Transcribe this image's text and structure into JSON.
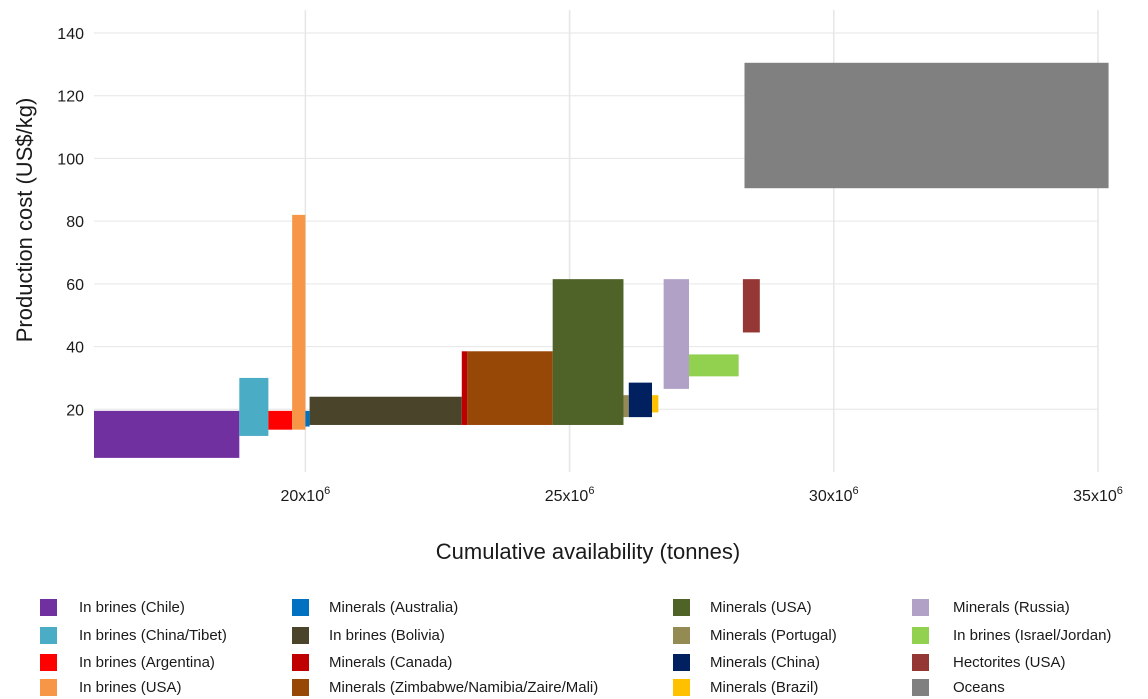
{
  "chart_data": {
    "type": "bar",
    "subtype": "supply-cost-curve",
    "title": "",
    "xlabel": "Cumulative availability (tonnes)",
    "ylabel": "Production cost (US$/kg)",
    "xlim": [
      16000000,
      35000000
    ],
    "ylim": [
      0,
      140
    ],
    "grid": true,
    "x_ticks": [
      {
        "value": 20000000,
        "label": "20x10",
        "sup": "6"
      },
      {
        "value": 25000000,
        "label": "25x10",
        "sup": "6"
      },
      {
        "value": 30000000,
        "label": "30x10",
        "sup": "6"
      },
      {
        "value": 35000000,
        "label": "35x10",
        "sup": "6"
      }
    ],
    "y_ticks": [
      20,
      40,
      60,
      80,
      100,
      120,
      140
    ],
    "series": [
      {
        "name": "In brines (Chile)",
        "color": "#7030a0",
        "x0": 16000000,
        "x1": 18750000,
        "ymin": 4.5,
        "ymax": 19.5
      },
      {
        "name": "In brines (China/Tibet)",
        "color": "#4bacc6",
        "x0": 18750000,
        "x1": 19300000,
        "ymin": 11.5,
        "ymax": 30
      },
      {
        "name": "In brines (Argentina)",
        "color": "#ff0000",
        "x0": 19300000,
        "x1": 19750000,
        "ymin": 13.5,
        "ymax": 19.5
      },
      {
        "name": "In brines (USA)",
        "color": "#f79646",
        "x0": 19750000,
        "x1": 20000000,
        "ymin": 13.5,
        "ymax": 82
      },
      {
        "name": "Minerals (Australia)",
        "color": "#0070c0",
        "x0": 20000000,
        "x1": 20080000,
        "ymin": 14.5,
        "ymax": 19.5
      },
      {
        "name": "In brines (Bolivia)",
        "color": "#4a452a",
        "x0": 20080000,
        "x1": 22960000,
        "ymin": 15,
        "ymax": 24
      },
      {
        "name": "Minerals (Canada)",
        "color": "#c00000",
        "x0": 22960000,
        "x1": 23060000,
        "ymin": 15,
        "ymax": 38.5
      },
      {
        "name": "Minerals (Zimbabwe/Namibia/Zaire/Mali)",
        "color": "#974706",
        "x0": 23060000,
        "x1": 24680000,
        "ymin": 15,
        "ymax": 38.5
      },
      {
        "name": "Minerals (USA)",
        "color": "#4f6228",
        "x0": 24680000,
        "x1": 26020000,
        "ymin": 15,
        "ymax": 61.5
      },
      {
        "name": "Minerals (Portugal)",
        "color": "#948a54",
        "x0": 26020000,
        "x1": 26120000,
        "ymin": 17.5,
        "ymax": 24.5
      },
      {
        "name": "Minerals (China)",
        "color": "#002060",
        "x0": 26120000,
        "x1": 26560000,
        "ymin": 17.5,
        "ymax": 28.5
      },
      {
        "name": "Minerals (Brazil)",
        "color": "#ffc000",
        "x0": 26560000,
        "x1": 26680000,
        "ymin": 19,
        "ymax": 24.5
      },
      {
        "name": "Minerals (Russia)",
        "color": "#b2a1c7",
        "x0": 26780000,
        "x1": 27260000,
        "ymin": 26.5,
        "ymax": 61.5
      },
      {
        "name": "In brines (Israel/Jordan)",
        "color": "#92d050",
        "x0": 27260000,
        "x1": 28200000,
        "ymin": 30.5,
        "ymax": 37.5
      },
      {
        "name": "Hectorites (USA)",
        "color": "#953735",
        "x0": 28280000,
        "x1": 28600000,
        "ymin": 44.5,
        "ymax": 61.5
      },
      {
        "name": "Oceans",
        "color": "#808080",
        "x0": 28310000,
        "x1": 35200000,
        "ymin": 90.5,
        "ymax": 130.5
      }
    ]
  }
}
